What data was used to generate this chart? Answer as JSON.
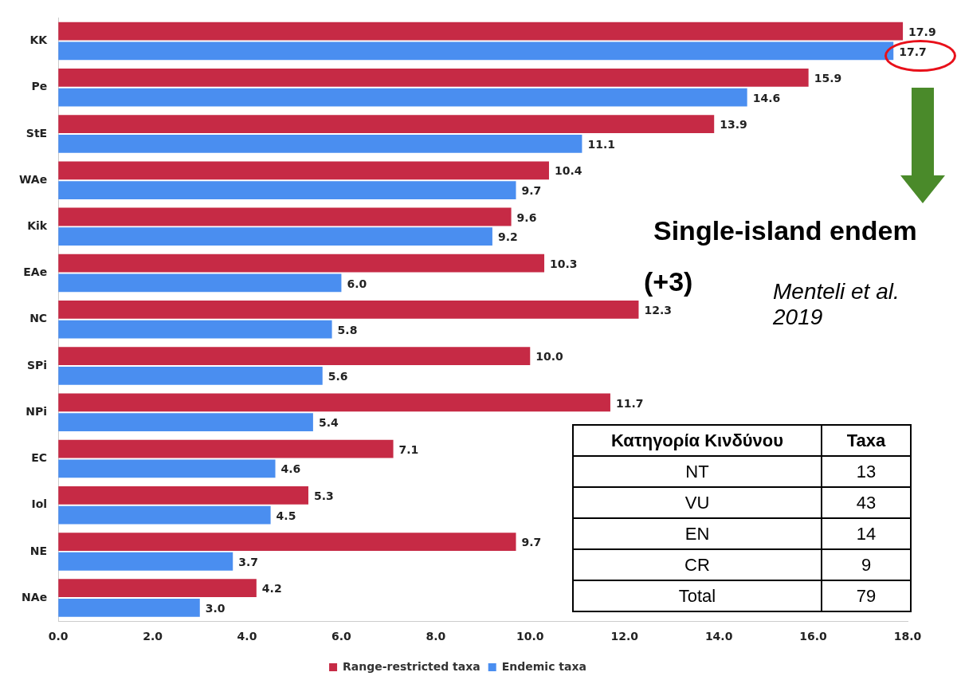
{
  "chart_data": [
    {
      "type": "bar",
      "orientation": "horizontal",
      "categories": [
        "KK",
        "Pe",
        "StE",
        "WAe",
        "Kik",
        "EAe",
        "NC",
        "SPi",
        "NPi",
        "EC",
        "Iol",
        "NE",
        "NAe"
      ],
      "series": [
        {
          "name": "Range-restricted taxa",
          "color": "#c62a45",
          "values": [
            17.9,
            15.9,
            13.9,
            10.4,
            9.6,
            10.3,
            12.3,
            10.0,
            11.7,
            7.1,
            5.3,
            9.7,
            4.2
          ],
          "value_labels": [
            "17.9",
            "15.9",
            "13.9",
            "10.4",
            "9.6",
            "10.3",
            "12.3",
            "10.0",
            "11.7",
            "7.1",
            "5.3",
            "9.7",
            "4.2"
          ]
        },
        {
          "name": "Endemic taxa",
          "color": "#4a8ef0",
          "values": [
            17.7,
            14.6,
            11.1,
            9.7,
            9.2,
            6.0,
            5.8,
            5.6,
            5.4,
            4.6,
            4.5,
            3.7,
            3.0
          ],
          "value_labels": [
            "17.7",
            "14.6",
            "11.1",
            "9.7",
            "9.2",
            "6.0",
            "5.8",
            "5.6",
            "5.4",
            "4.6",
            "4.5",
            "3.7",
            "3.0"
          ]
        }
      ],
      "xlim": [
        0,
        18
      ],
      "xticks": [
        {
          "value": 0,
          "label": "0.0"
        },
        {
          "value": 2,
          "label": "2.0"
        },
        {
          "value": 4,
          "label": "4.0"
        },
        {
          "value": 6,
          "label": "6.0"
        },
        {
          "value": 8,
          "label": "8.0"
        },
        {
          "value": 10,
          "label": "10.0"
        },
        {
          "value": 12,
          "label": "12.0"
        },
        {
          "value": 14,
          "label": "14.0"
        },
        {
          "value": 16,
          "label": "16.0"
        },
        {
          "value": 18,
          "label": "18.0"
        }
      ],
      "grid": false,
      "legend": "bottom",
      "annotations": [
        "Single-island endem",
        "(+3)",
        "Menteli et al. 2019"
      ]
    },
    {
      "type": "other",
      "xlabel": "Κατηγορία Κινδύνου",
      "ylabel": "Taxa",
      "categories": [
        "NT",
        "VU",
        "EN",
        "CR",
        "Total"
      ],
      "values": [
        13,
        43,
        14,
        9,
        79
      ],
      "data_labels": true
    }
  ]
}
